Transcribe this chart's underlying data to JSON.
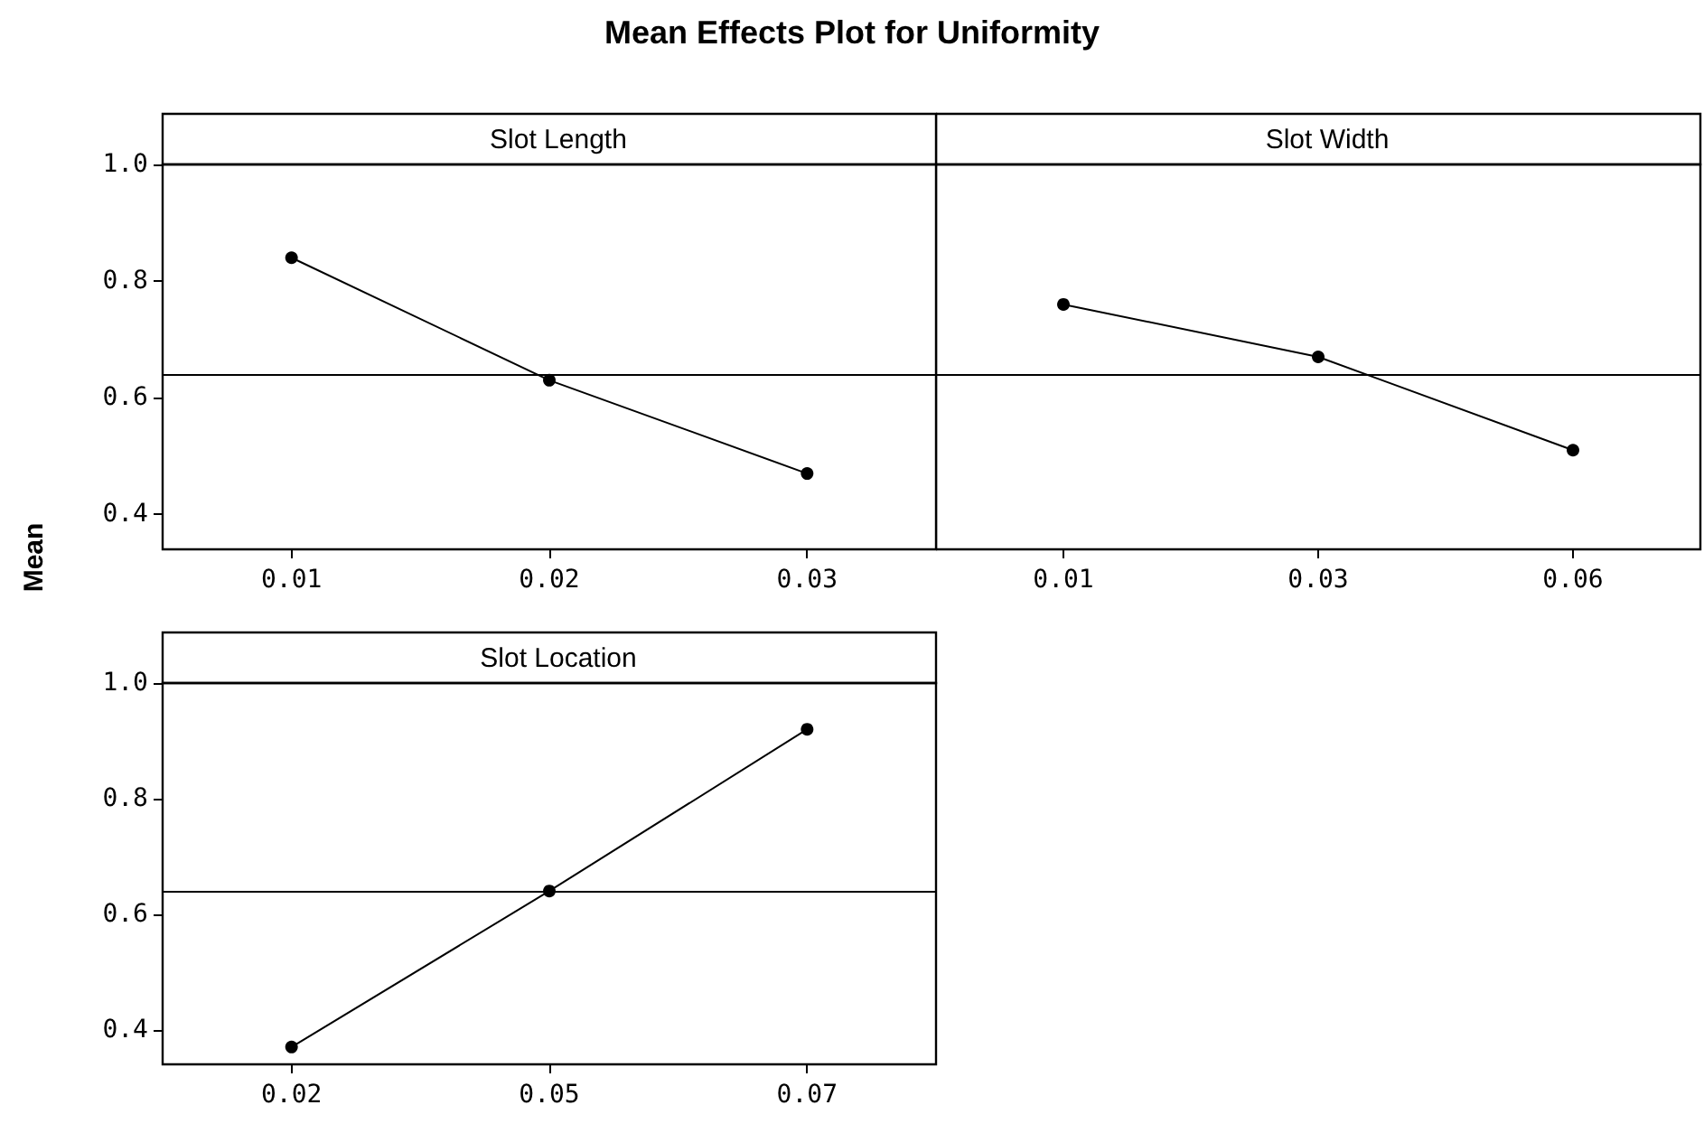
{
  "chart_data": [
    {
      "type": "line",
      "title": "Slot Length",
      "ylabel": "Mean",
      "annotations": [
        "Mean Effects Plot for Uniformity"
      ],
      "categories": [
        "0.01",
        "0.02",
        "0.03"
      ],
      "series": [
        {
          "color": "#000000",
          "values": [
            0.84,
            0.63,
            0.47
          ]
        }
      ],
      "ylim": [
        0.34,
        1.0
      ],
      "yticks": [
        {
          "value": 0.4,
          "label": "0.4"
        },
        {
          "value": 0.6,
          "label": "0.6"
        },
        {
          "value": 0.8,
          "label": "0.8"
        },
        {
          "value": 1.0,
          "label": "1.0"
        }
      ],
      "ref_lines": [
        {
          "axis": "y",
          "value": 0.64,
          "color": "#000000"
        }
      ],
      "marker": "circle",
      "grid": false
    },
    {
      "type": "line",
      "title": "Slot Width",
      "categories": [
        "0.01",
        "0.03",
        "0.06"
      ],
      "series": [
        {
          "color": "#000000",
          "values": [
            0.76,
            0.67,
            0.51
          ]
        }
      ],
      "ylim": [
        0.34,
        1.0
      ],
      "tick_labels": "x",
      "ref_lines": [
        {
          "axis": "y",
          "value": 0.64,
          "color": "#000000"
        }
      ],
      "marker": "circle",
      "grid": false
    },
    {
      "type": "line",
      "title": "Slot Location",
      "categories": [
        "0.02",
        "0.05",
        "0.07"
      ],
      "series": [
        {
          "color": "#000000",
          "values": [
            0.37,
            0.64,
            0.92
          ]
        }
      ],
      "ylim": [
        0.34,
        1.0
      ],
      "yticks": [
        {
          "value": 0.4,
          "label": "0.4"
        },
        {
          "value": 0.6,
          "label": "0.6"
        },
        {
          "value": 0.8,
          "label": "0.8"
        },
        {
          "value": 1.0,
          "label": "1.0"
        }
      ],
      "ref_lines": [
        {
          "axis": "y",
          "value": 0.64,
          "color": "#000000"
        }
      ],
      "marker": "circle",
      "grid": false
    }
  ]
}
